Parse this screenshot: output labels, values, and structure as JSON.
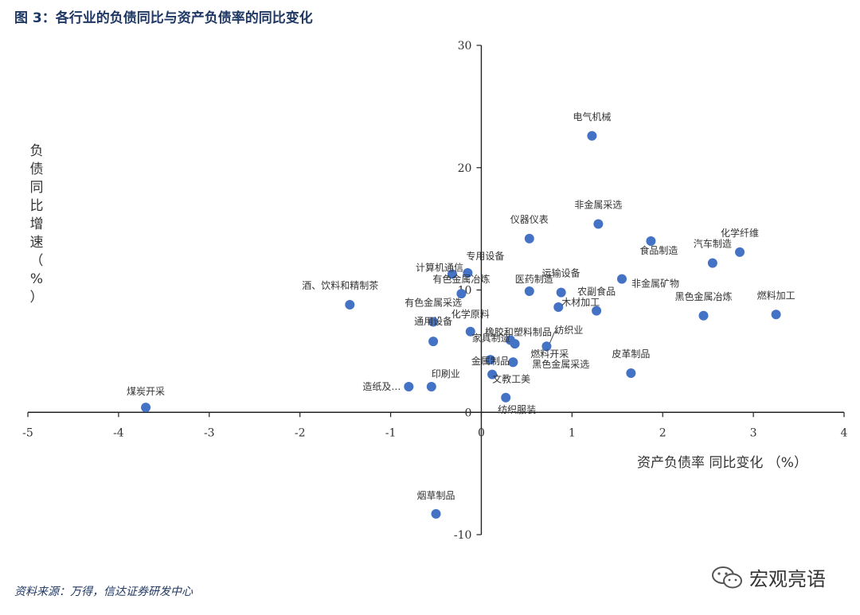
{
  "title": "图 3：各行业的负债同比与资产负债率的同比变化",
  "source": "资料来源：万得，信达证券研发中心",
  "watermark": "宏观亮语",
  "chart_data": {
    "type": "scatter",
    "title": "",
    "xlabel": "资产负债率 同比变化 （%）",
    "ylabel": "负债同比增速（%）",
    "xlim": [
      -5,
      4
    ],
    "ylim": [
      -10,
      30
    ],
    "xticks": [
      "-5",
      "-4",
      "-3",
      "-2",
      "-1",
      "0",
      "1",
      "2",
      "3",
      "4"
    ],
    "yticks": [
      "-10",
      "0",
      "10",
      "20",
      "30"
    ],
    "grid": false,
    "color": "#4472c4",
    "points": [
      {
        "label": "煤炭开采",
        "x": -3.7,
        "y": 0.4
      },
      {
        "label": "酒、饮料和精制茶",
        "x": -1.45,
        "y": 8.8
      },
      {
        "label": "造纸及…",
        "x": -0.8,
        "y": 2.1
      },
      {
        "label": "印刷业",
        "x": -0.55,
        "y": 2.1
      },
      {
        "label": "通用设备",
        "x": -0.53,
        "y": 5.8
      },
      {
        "label": "有色金属采选",
        "x": -0.53,
        "y": 7.4
      },
      {
        "label": "有色金属冶炼",
        "x": -0.22,
        "y": 9.7
      },
      {
        "label": "计算机通信",
        "x": -0.32,
        "y": 11.3
      },
      {
        "label": "专用设备",
        "x": -0.15,
        "y": 11.4
      },
      {
        "label": "化学原料",
        "x": -0.12,
        "y": 6.6
      },
      {
        "label": "烟草制品",
        "x": -0.5,
        "y": -8.3
      },
      {
        "label": "橡胶和塑料制品",
        "x": 0.32,
        "y": 5.9
      },
      {
        "label": "家具制造",
        "x": 0.37,
        "y": 5.6
      },
      {
        "label": "金属制品",
        "x": 0.1,
        "y": 4.3
      },
      {
        "label": "文教工美",
        "x": 0.12,
        "y": 3.1
      },
      {
        "label": "纺织服装",
        "x": 0.27,
        "y": 1.2
      },
      {
        "label": "纺织业",
        "x": 0.72,
        "y": 5.4
      },
      {
        "label": "燃料开采",
        "x": 0.35,
        "y": 4.1
      },
      {
        "label": "黑色金属采选",
        "x": 0.35,
        "y": 4.1
      },
      {
        "label": "医药制造",
        "x": 0.53,
        "y": 9.9
      },
      {
        "label": "运输设备",
        "x": 0.88,
        "y": 9.8
      },
      {
        "label": "木材加工",
        "x": 0.85,
        "y": 8.6
      },
      {
        "label": "农副食品",
        "x": 1.27,
        "y": 8.3
      },
      {
        "label": "仪器仪表",
        "x": 0.53,
        "y": 14.2
      },
      {
        "label": "电气机械",
        "x": 1.22,
        "y": 22.6
      },
      {
        "label": "非金属采选",
        "x": 1.29,
        "y": 15.4
      },
      {
        "label": "非金属矿物",
        "x": 1.55,
        "y": 10.9
      },
      {
        "label": "食品制造",
        "x": 1.87,
        "y": 14.0
      },
      {
        "label": "皮革制品",
        "x": 1.65,
        "y": 3.2
      },
      {
        "label": "汽车制造",
        "x": 2.55,
        "y": 12.2
      },
      {
        "label": "化学纤维",
        "x": 2.85,
        "y": 13.1
      },
      {
        "label": "黑色金属冶炼",
        "x": 2.45,
        "y": 7.9
      },
      {
        "label": "燃料加工",
        "x": 3.25,
        "y": 8.0
      }
    ]
  }
}
